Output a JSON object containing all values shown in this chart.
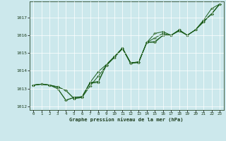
{
  "title": "Graphe pression niveau de la mer (hPa)",
  "bg_color": "#cce8ec",
  "line_color": "#1a5c1a",
  "marker_color": "#1a5c1a",
  "xlim": [
    -0.5,
    23.5
  ],
  "ylim": [
    1011.8,
    1017.9
  ],
  "yticks": [
    1012,
    1013,
    1014,
    1015,
    1016,
    1017
  ],
  "xticks": [
    0,
    1,
    2,
    3,
    4,
    5,
    6,
    7,
    8,
    9,
    10,
    11,
    12,
    13,
    14,
    15,
    16,
    17,
    18,
    19,
    20,
    21,
    22,
    23
  ],
  "series": [
    [
      1013.2,
      1013.25,
      1013.2,
      1013.1,
      1012.9,
      1012.45,
      1012.5,
      1013.15,
      1013.7,
      1014.3,
      1014.75,
      1015.25,
      1014.45,
      1014.45,
      1015.6,
      1016.1,
      1016.2,
      1016.0,
      1016.3,
      1016.0,
      1016.3,
      1016.85,
      1017.5,
      1017.75
    ],
    [
      1013.2,
      1013.25,
      1013.2,
      1013.1,
      1012.9,
      1012.45,
      1012.5,
      1013.35,
      1013.95,
      1014.35,
      1014.8,
      1015.3,
      1014.45,
      1014.5,
      1015.6,
      1015.85,
      1016.1,
      1016.0,
      1016.3,
      1016.0,
      1016.3,
      1016.8,
      1017.2,
      1017.75
    ],
    [
      1013.2,
      1013.25,
      1013.2,
      1013.0,
      1012.35,
      1012.5,
      1012.55,
      1013.35,
      1013.4,
      1014.35,
      1014.8,
      1015.25,
      1014.45,
      1014.5,
      1015.6,
      1015.65,
      1016.0,
      1016.0,
      1016.25,
      1016.0,
      1016.3,
      1016.75,
      1017.2,
      1017.75
    ],
    [
      1013.2,
      1013.25,
      1013.2,
      1013.0,
      1012.35,
      1012.5,
      1012.55,
      1013.3,
      1013.35,
      1014.3,
      1014.8,
      1015.25,
      1014.4,
      1014.5,
      1015.6,
      1015.6,
      1016.0,
      1016.0,
      1016.25,
      1016.0,
      1016.3,
      1016.75,
      1017.2,
      1017.75
    ]
  ]
}
